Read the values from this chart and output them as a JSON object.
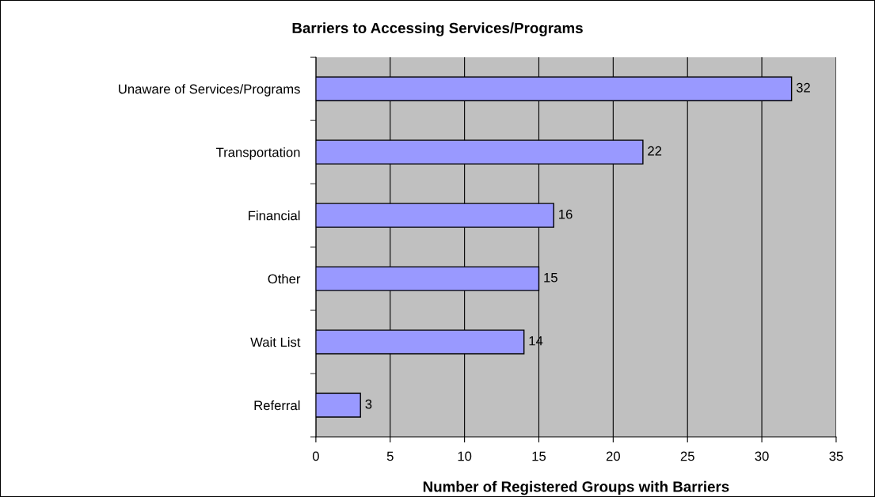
{
  "chart_data": {
    "type": "bar",
    "orientation": "horizontal",
    "title": "Barriers to Accessing Services/Programs",
    "xlabel": "Number of Registered Groups with Barriers",
    "categories": [
      "Unaware of Services/Programs",
      "Transportation",
      "Financial",
      "Other",
      "Wait List",
      "Referral"
    ],
    "values": [
      32,
      22,
      16,
      15,
      14,
      3
    ],
    "color": "#9999ff",
    "xlim": [
      0,
      35
    ],
    "xticks": [
      0,
      5,
      10,
      15,
      20,
      25,
      30,
      35
    ],
    "grid": "x",
    "data_labels": true
  }
}
